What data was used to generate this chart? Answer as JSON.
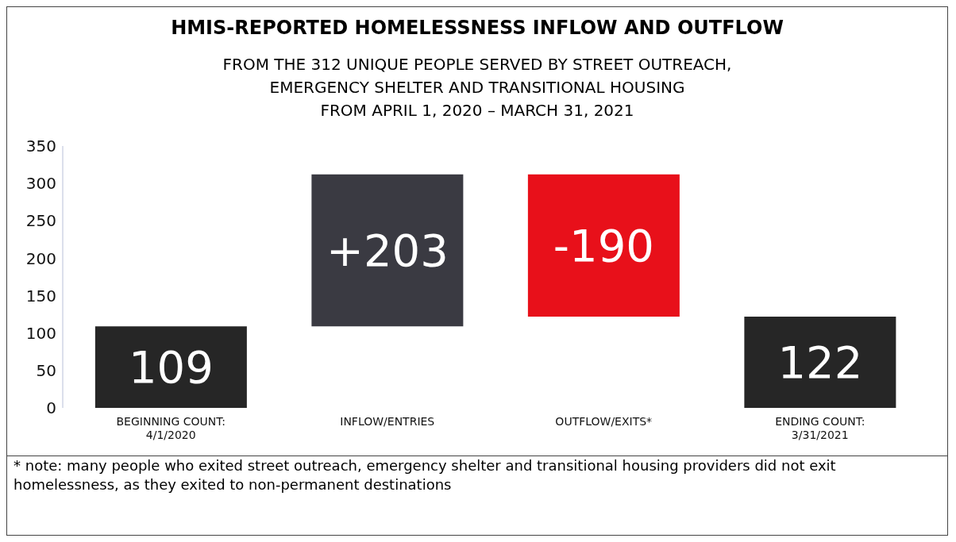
{
  "chart_data": {
    "type": "bar",
    "title": "HMIS-REPORTED HOMELESSNESS INFLOW AND OUTFLOW",
    "subtitle": "FROM THE 312 UNIQUE PEOPLE SERVED BY STREET OUTREACH,\nEMERGENCY SHELTER AND TRANSITIONAL HOUSING\nFROM APRIL 1, 2020 – MARCH 31, 2021",
    "categories": [
      "BEGINNING COUNT:\n4/1/2020",
      "INFLOW/ENTRIES",
      "OUTFLOW/EXITS*",
      "ENDING COUNT:\n3/31/2021"
    ],
    "values": [
      109,
      203,
      -190,
      122
    ],
    "base": [
      0,
      109,
      312,
      0
    ],
    "colors": [
      "#262626",
      "#3a3a42",
      "#e8101a",
      "#262626"
    ],
    "value_labels": [
      "109",
      "+203",
      "-190",
      "122"
    ],
    "ylim": [
      0,
      350
    ],
    "yticks": [
      0,
      50,
      100,
      150,
      200,
      250,
      300,
      350
    ],
    "grid": false,
    "legend": false,
    "annotations": [
      "* note:  many people who exited street outreach, emergency shelter and transitional housing providers did not exit homelessness, as they exited to non-permanent destinations"
    ]
  }
}
